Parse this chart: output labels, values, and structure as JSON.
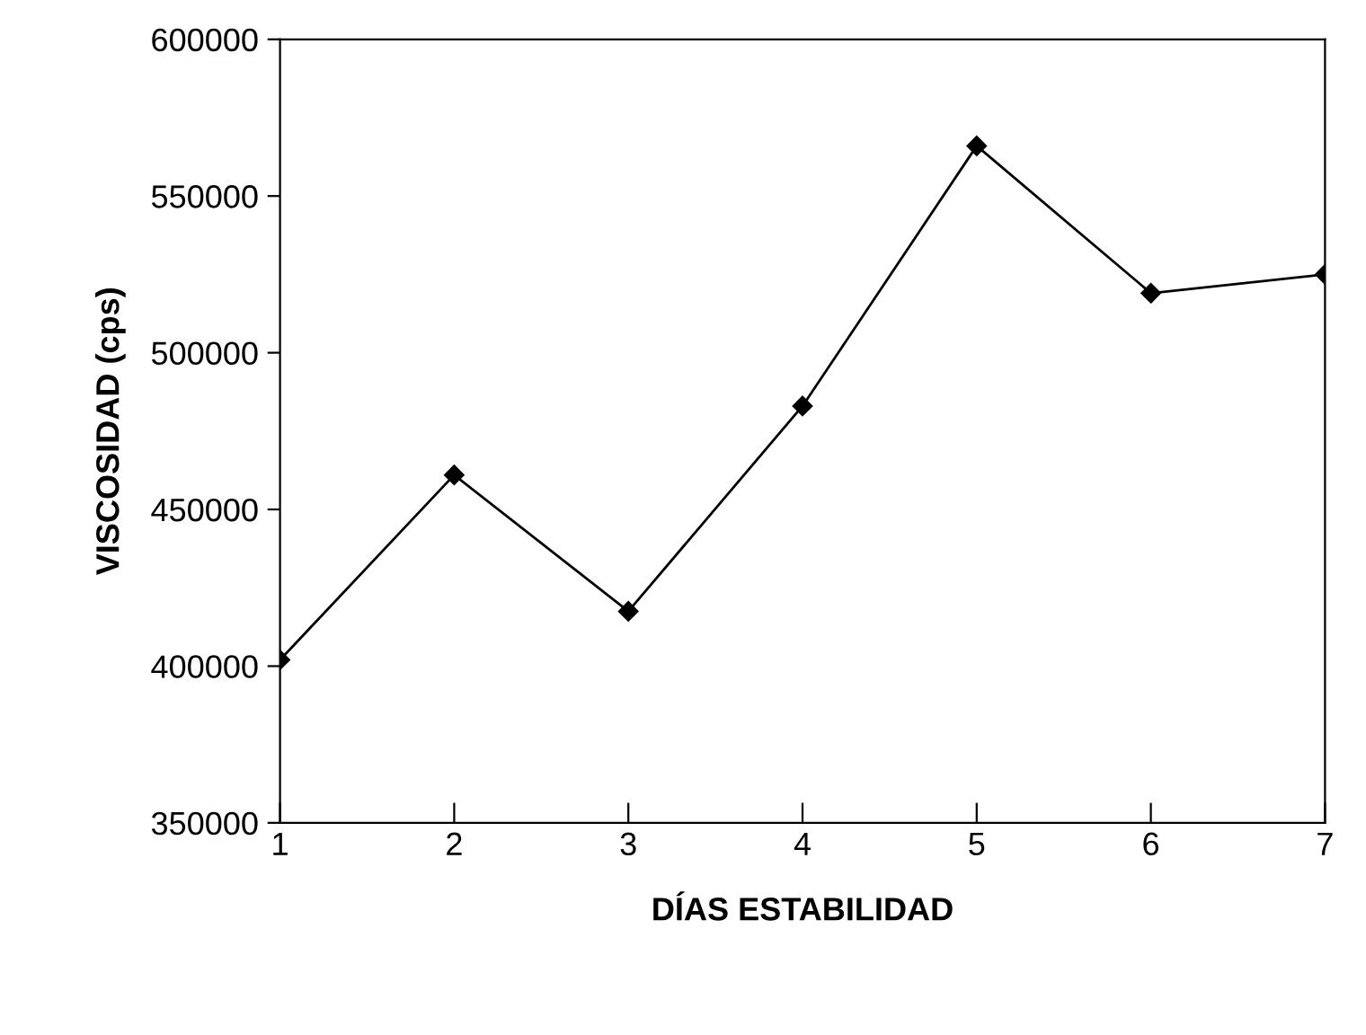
{
  "chart_data": {
    "type": "line",
    "xlabel": "DÍAS ESTABILIDAD",
    "ylabel": "VISCOSIDAD (cps)",
    "x": [
      1,
      2,
      3,
      4,
      5,
      6,
      7
    ],
    "series": [
      {
        "color": "#000000",
        "values": [
          402000,
          461000,
          417500,
          483000,
          566000,
          519000,
          525000
        ]
      }
    ],
    "xlim": [
      1,
      7
    ],
    "xticks": [
      1,
      2,
      3,
      4,
      5,
      6,
      7
    ],
    "ylim": [
      350000,
      600000
    ],
    "yticks": [
      350000,
      400000,
      450000,
      500000,
      550000,
      600000
    ],
    "marker": "diamond",
    "line_style": "solid",
    "grid": false,
    "legend": false
  }
}
